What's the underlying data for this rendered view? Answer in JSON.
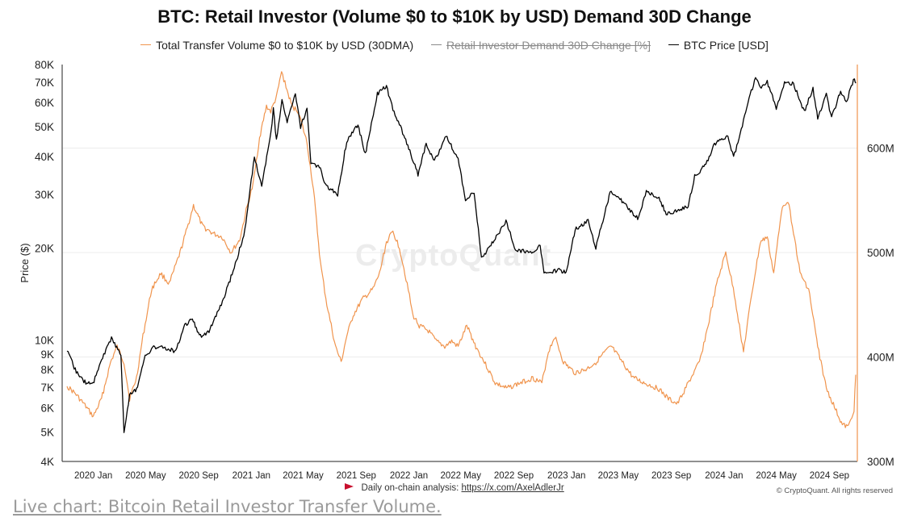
{
  "chart_data": {
    "type": "line",
    "title": "BTC: Retail Investor (Volume $0 to $10K by USD) Demand 30D Change",
    "ylabel": "Price ($)",
    "y_scale": "log",
    "ylim": [
      4000,
      80000
    ],
    "y2lim": [
      300000000,
      680000000
    ],
    "x_range": [
      "2019-11-01",
      "2024-11-01"
    ],
    "grid": "horizontal",
    "legend_position": "top",
    "y_ticks": [
      "80K",
      "70K",
      "60K",
      "50K",
      "40K",
      "30K",
      "20K",
      "10K",
      "9K",
      "8K",
      "7K",
      "6K",
      "5K",
      "4K"
    ],
    "y_tick_values": [
      80000,
      70000,
      60000,
      50000,
      40000,
      30000,
      20000,
      10000,
      9000,
      8000,
      7000,
      6000,
      5000,
      4000
    ],
    "y2_ticks": [
      "600M",
      "500M",
      "400M",
      "300M"
    ],
    "y2_tick_values": [
      600000000,
      500000000,
      400000000,
      300000000
    ],
    "x_ticks": [
      "2020 Jan",
      "2020 May",
      "2020 Sep",
      "2021 Jan",
      "2021 May",
      "2021 Sep",
      "2022 Jan",
      "2022 May",
      "2022 Sep",
      "2023 Jan",
      "2023 May",
      "2023 Sep",
      "2024 Jan",
      "2024 May",
      "2024 Sep"
    ],
    "x_tick_dates": [
      "2020-01-01",
      "2020-05-01",
      "2020-09-01",
      "2021-01-01",
      "2021-05-01",
      "2021-09-01",
      "2022-01-01",
      "2022-05-01",
      "2022-09-01",
      "2023-01-01",
      "2023-05-01",
      "2023-09-01",
      "2024-01-01",
      "2024-05-01",
      "2024-09-01"
    ],
    "series": [
      {
        "name": "Total Transfer Volume $0 to $10K by USD (30DMA)",
        "axis": "right",
        "color": "#f0944d",
        "points": [
          [
            "2019-11-01",
            372000000
          ],
          [
            "2019-11-20",
            365000000
          ],
          [
            "2019-12-10",
            355000000
          ],
          [
            "2020-01-01",
            343000000
          ],
          [
            "2020-01-20",
            360000000
          ],
          [
            "2020-02-10",
            395000000
          ],
          [
            "2020-02-25",
            410000000
          ],
          [
            "2020-03-12",
            395000000
          ],
          [
            "2020-03-25",
            360000000
          ],
          [
            "2020-04-10",
            380000000
          ],
          [
            "2020-04-25",
            420000000
          ],
          [
            "2020-05-15",
            465000000
          ],
          [
            "2020-06-05",
            480000000
          ],
          [
            "2020-06-25",
            470000000
          ],
          [
            "2020-07-20",
            500000000
          ],
          [
            "2020-08-10",
            530000000
          ],
          [
            "2020-08-20",
            545000000
          ],
          [
            "2020-09-10",
            525000000
          ],
          [
            "2020-10-05",
            518000000
          ],
          [
            "2020-10-25",
            515000000
          ],
          [
            "2020-11-15",
            500000000
          ],
          [
            "2020-12-05",
            512000000
          ],
          [
            "2020-12-20",
            540000000
          ],
          [
            "2021-01-05",
            565000000
          ],
          [
            "2021-01-20",
            610000000
          ],
          [
            "2021-02-05",
            640000000
          ],
          [
            "2021-02-15",
            635000000
          ],
          [
            "2021-03-01",
            650000000
          ],
          [
            "2021-03-12",
            673000000
          ],
          [
            "2021-03-25",
            655000000
          ],
          [
            "2021-04-05",
            640000000
          ],
          [
            "2021-04-20",
            635000000
          ],
          [
            "2021-05-10",
            605000000
          ],
          [
            "2021-05-25",
            560000000
          ],
          [
            "2021-06-10",
            490000000
          ],
          [
            "2021-06-25",
            450000000
          ],
          [
            "2021-07-15",
            410000000
          ],
          [
            "2021-07-28",
            395000000
          ],
          [
            "2021-08-10",
            420000000
          ],
          [
            "2021-08-25",
            440000000
          ],
          [
            "2021-09-15",
            455000000
          ],
          [
            "2021-10-10",
            465000000
          ],
          [
            "2021-10-25",
            480000000
          ],
          [
            "2021-11-10",
            510000000
          ],
          [
            "2021-11-25",
            520000000
          ],
          [
            "2021-12-10",
            505000000
          ],
          [
            "2021-12-28",
            470000000
          ],
          [
            "2022-01-10",
            440000000
          ],
          [
            "2022-01-25",
            430000000
          ],
          [
            "2022-02-15",
            425000000
          ],
          [
            "2022-03-05",
            415000000
          ],
          [
            "2022-03-25",
            410000000
          ],
          [
            "2022-04-10",
            415000000
          ],
          [
            "2022-04-25",
            410000000
          ],
          [
            "2022-05-15",
            430000000
          ],
          [
            "2022-06-05",
            410000000
          ],
          [
            "2022-06-25",
            395000000
          ],
          [
            "2022-07-20",
            375000000
          ],
          [
            "2022-08-15",
            370000000
          ],
          [
            "2022-09-15",
            375000000
          ],
          [
            "2022-10-15",
            380000000
          ],
          [
            "2022-11-05",
            375000000
          ],
          [
            "2022-11-20",
            405000000
          ],
          [
            "2022-12-05",
            420000000
          ],
          [
            "2022-12-25",
            395000000
          ],
          [
            "2023-01-20",
            385000000
          ],
          [
            "2023-02-15",
            388000000
          ],
          [
            "2023-03-10",
            395000000
          ],
          [
            "2023-04-01",
            405000000
          ],
          [
            "2023-04-15",
            410000000
          ],
          [
            "2023-05-10",
            395000000
          ],
          [
            "2023-06-05",
            380000000
          ],
          [
            "2023-07-01",
            375000000
          ],
          [
            "2023-08-01",
            370000000
          ],
          [
            "2023-08-25",
            360000000
          ],
          [
            "2023-09-15",
            355000000
          ],
          [
            "2023-10-10",
            375000000
          ],
          [
            "2023-11-05",
            395000000
          ],
          [
            "2023-11-25",
            430000000
          ],
          [
            "2023-12-15",
            470000000
          ],
          [
            "2024-01-05",
            500000000
          ],
          [
            "2024-01-25",
            460000000
          ],
          [
            "2024-02-15",
            405000000
          ],
          [
            "2024-03-05",
            460000000
          ],
          [
            "2024-03-25",
            510000000
          ],
          [
            "2024-04-10",
            515000000
          ],
          [
            "2024-04-25",
            480000000
          ],
          [
            "2024-05-15",
            545000000
          ],
          [
            "2024-05-28",
            550000000
          ],
          [
            "2024-06-10",
            520000000
          ],
          [
            "2024-06-25",
            480000000
          ],
          [
            "2024-07-15",
            465000000
          ],
          [
            "2024-08-05",
            410000000
          ],
          [
            "2024-08-25",
            370000000
          ],
          [
            "2024-09-15",
            350000000
          ],
          [
            "2024-10-01",
            335000000
          ],
          [
            "2024-10-15",
            333000000
          ],
          [
            "2024-10-28",
            350000000
          ],
          [
            "2024-11-01",
            383000000
          ]
        ]
      },
      {
        "name": "Retail Investor Demand 30D Change [%]",
        "visible": false,
        "color": "#9e9e9e"
      },
      {
        "name": "BTC Price [USD]",
        "axis": "left",
        "color": "#000000",
        "points": [
          [
            "2019-11-01",
            9200
          ],
          [
            "2019-11-20",
            8000
          ],
          [
            "2019-12-10",
            7300
          ],
          [
            "2019-12-31",
            7200
          ],
          [
            "2020-01-20",
            8600
          ],
          [
            "2020-02-12",
            10200
          ],
          [
            "2020-03-05",
            8900
          ],
          [
            "2020-03-12",
            5000
          ],
          [
            "2020-03-25",
            6600
          ],
          [
            "2020-04-10",
            6900
          ],
          [
            "2020-04-30",
            8800
          ],
          [
            "2020-05-20",
            9500
          ],
          [
            "2020-06-15",
            9400
          ],
          [
            "2020-07-10",
            9200
          ],
          [
            "2020-07-28",
            11000
          ],
          [
            "2020-08-15",
            11800
          ],
          [
            "2020-09-05",
            10300
          ],
          [
            "2020-09-25",
            10700
          ],
          [
            "2020-10-21",
            12800
          ],
          [
            "2020-11-10",
            15300
          ],
          [
            "2020-11-30",
            18700
          ],
          [
            "2020-12-17",
            22800
          ],
          [
            "2021-01-08",
            40000
          ],
          [
            "2021-01-25",
            32000
          ],
          [
            "2021-02-15",
            47000
          ],
          [
            "2021-02-21",
            57000
          ],
          [
            "2021-02-28",
            45000
          ],
          [
            "2021-03-13",
            61000
          ],
          [
            "2021-03-25",
            52000
          ],
          [
            "2021-04-13",
            63500
          ],
          [
            "2021-04-25",
            50000
          ],
          [
            "2021-05-10",
            57000
          ],
          [
            "2021-05-19",
            38000
          ],
          [
            "2021-06-10",
            36500
          ],
          [
            "2021-06-22",
            32000
          ],
          [
            "2021-07-20",
            30000
          ],
          [
            "2021-08-10",
            45000
          ],
          [
            "2021-09-05",
            51000
          ],
          [
            "2021-09-22",
            40500
          ],
          [
            "2021-10-20",
            64000
          ],
          [
            "2021-11-10",
            68000
          ],
          [
            "2021-11-25",
            57000
          ],
          [
            "2021-12-20",
            47000
          ],
          [
            "2022-01-22",
            35000
          ],
          [
            "2022-02-10",
            44000
          ],
          [
            "2022-03-01",
            38500
          ],
          [
            "2022-03-28",
            47000
          ],
          [
            "2022-04-25",
            39000
          ],
          [
            "2022-05-12",
            29000
          ],
          [
            "2022-06-01",
            30500
          ],
          [
            "2022-06-18",
            18500
          ],
          [
            "2022-07-05",
            20000
          ],
          [
            "2022-08-14",
            24500
          ],
          [
            "2022-09-05",
            19800
          ],
          [
            "2022-10-10",
            19300
          ],
          [
            "2022-11-01",
            20500
          ],
          [
            "2022-11-10",
            16500
          ],
          [
            "2022-12-15",
            17000
          ],
          [
            "2022-12-31",
            16600
          ],
          [
            "2023-01-21",
            23000
          ],
          [
            "2023-02-20",
            24500
          ],
          [
            "2023-03-10",
            20000
          ],
          [
            "2023-04-12",
            30500
          ],
          [
            "2023-05-05",
            29000
          ],
          [
            "2023-06-15",
            25000
          ],
          [
            "2023-07-05",
            30500
          ],
          [
            "2023-08-01",
            29500
          ],
          [
            "2023-08-20",
            26000
          ],
          [
            "2023-09-15",
            26500
          ],
          [
            "2023-10-10",
            27500
          ],
          [
            "2023-10-25",
            34500
          ],
          [
            "2023-11-20",
            37500
          ],
          [
            "2023-12-10",
            44000
          ],
          [
            "2024-01-10",
            46500
          ],
          [
            "2024-01-23",
            39500
          ],
          [
            "2024-02-15",
            52000
          ],
          [
            "2024-02-28",
            62000
          ],
          [
            "2024-03-14",
            72000
          ],
          [
            "2024-03-25",
            67000
          ],
          [
            "2024-04-10",
            70000
          ],
          [
            "2024-04-20",
            64000
          ],
          [
            "2024-05-01",
            57000
          ],
          [
            "2024-05-20",
            70000
          ],
          [
            "2024-06-10",
            69000
          ],
          [
            "2024-07-05",
            56000
          ],
          [
            "2024-07-25",
            67000
          ],
          [
            "2024-08-05",
            53500
          ],
          [
            "2024-08-25",
            64000
          ],
          [
            "2024-09-06",
            53500
          ],
          [
            "2024-09-27",
            65500
          ],
          [
            "2024-10-10",
            60500
          ],
          [
            "2024-10-29",
            72000
          ],
          [
            "2024-11-01",
            69500
          ]
        ]
      }
    ]
  },
  "watermark": "CryptoQuant",
  "footer": {
    "text": "Daily on-chain analysis:",
    "link": "https://x.com/AxelAdlerJr",
    "copyright": "© CryptoQuant. All rights reserved"
  },
  "caption": "Live chart: Bitcoin Retail Investor Transfer Volume."
}
